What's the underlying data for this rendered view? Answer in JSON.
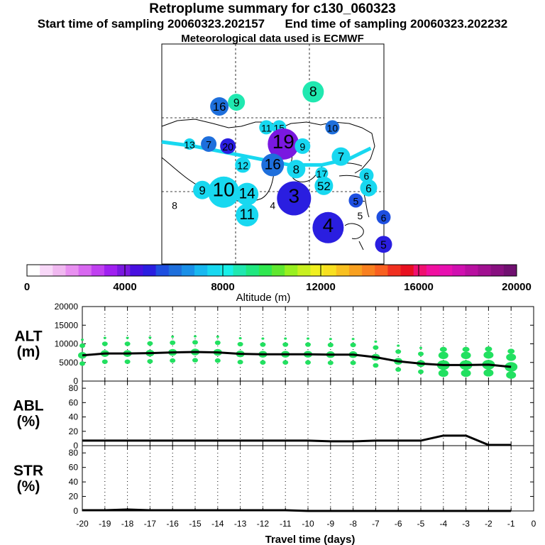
{
  "header": {
    "title": "Retroplume summary for c130_060323",
    "start_label": "Start time of sampling 20060323.202157",
    "end_label": "End time of sampling 20060323.202232",
    "met_label": "Meteorological data used is ECMWF"
  },
  "map": {
    "plume_labels": [
      {
        "t": "16",
        "c": "#1e6fdc",
        "s": 13,
        "lon": 0.27,
        "lat": 0.72
      },
      {
        "t": "9",
        "c": "#20e8b0",
        "s": 12,
        "lon": 0.35,
        "lat": 0.74
      },
      {
        "t": "8",
        "c": "#20e8b0",
        "s": 15,
        "lon": 0.71,
        "lat": 0.79
      },
      {
        "t": "11",
        "c": "#18d8f0",
        "s": 10,
        "lon": 0.49,
        "lat": 0.62
      },
      {
        "t": "15",
        "c": "#18d8f0",
        "s": 10,
        "lon": 0.55,
        "lat": 0.62
      },
      {
        "t": "10",
        "c": "#1e6fdc",
        "s": 10,
        "lon": 0.8,
        "lat": 0.62
      },
      {
        "t": "13",
        "c": "#18d8f0",
        "s": 8,
        "lon": 0.13,
        "lat": 0.54
      },
      {
        "t": "7",
        "c": "#1e6fdc",
        "s": 11,
        "lon": 0.22,
        "lat": 0.54
      },
      {
        "t": "20",
        "c": "#2a1ee0",
        "s": 11,
        "lon": 0.31,
        "lat": 0.53
      },
      {
        "t": "19",
        "c": "#7a18e0",
        "s": 22,
        "lon": 0.57,
        "lat": 0.54
      },
      {
        "t": "9",
        "c": "#18d8f0",
        "s": 11,
        "lon": 0.66,
        "lat": 0.53
      },
      {
        "t": "7",
        "c": "#18d8f0",
        "s": 13,
        "lon": 0.84,
        "lat": 0.48
      },
      {
        "t": "12",
        "c": "#18d8f0",
        "s": 11,
        "lon": 0.38,
        "lat": 0.44
      },
      {
        "t": "16",
        "c": "#1e6fdc",
        "s": 16,
        "lon": 0.52,
        "lat": 0.44
      },
      {
        "t": "17",
        "c": "#18d8f0",
        "s": 9,
        "lon": 0.75,
        "lat": 0.4
      },
      {
        "t": "6",
        "c": "#18d8f0",
        "s": 10,
        "lon": 0.96,
        "lat": 0.39
      },
      {
        "t": "9",
        "c": "#18d8f0",
        "s": 13,
        "lon": 0.19,
        "lat": 0.32
      },
      {
        "t": "10",
        "c": "#18d8f0",
        "s": 22,
        "lon": 0.29,
        "lat": 0.31
      },
      {
        "t": "14",
        "c": "#18d8f0",
        "s": 16,
        "lon": 0.4,
        "lat": 0.3
      },
      {
        "t": "8",
        "c": "#18d8f0",
        "s": 13,
        "lon": 0.63,
        "lat": 0.42
      },
      {
        "t": "52",
        "c": "#18d8f0",
        "s": 13,
        "lon": 0.76,
        "lat": 0.34
      },
      {
        "t": "6",
        "c": "#18d8f0",
        "s": 12,
        "lon": 0.97,
        "lat": 0.33
      },
      {
        "t": "3",
        "c": "#2a1ee0",
        "s": 24,
        "lon": 0.62,
        "lat": 0.28
      },
      {
        "t": "5",
        "c": "#1e4fe0",
        "s": 10,
        "lon": 0.91,
        "lat": 0.27
      },
      {
        "t": "11",
        "c": "#18d8f0",
        "s": 16,
        "lon": 0.4,
        "lat": 0.2
      },
      {
        "t": "4",
        "c": "#2a1ee0",
        "s": 22,
        "lon": 0.78,
        "lat": 0.14
      },
      {
        "t": "6",
        "c": "#1e4fe0",
        "s": 10,
        "lon": 1.04,
        "lat": 0.19
      },
      {
        "t": "5",
        "c": "#2a1ee0",
        "s": 12,
        "lon": 1.04,
        "lat": 0.06
      },
      {
        "t": "8",
        "c": "#18d8f0",
        "s": 0,
        "lon": 0.06,
        "lat": 0.25
      },
      {
        "t": "4",
        "c": "#7a18e0",
        "s": 0,
        "lon": 0.52,
        "lat": 0.25
      },
      {
        "t": "5",
        "c": "#1e4fe0",
        "s": 0,
        "lon": 0.93,
        "lat": 0.2
      }
    ]
  },
  "colorbar": {
    "ticks": [
      "0",
      "4000",
      "8000",
      "12000",
      "16000",
      "20000"
    ],
    "label": "Altitude (m)",
    "colors": [
      "#ffffff",
      "#f8d8f8",
      "#f0b8f0",
      "#e890f0",
      "#d868f0",
      "#c040f0",
      "#a020f0",
      "#7a18e0",
      "#4810e0",
      "#2a1ee0",
      "#1e4fe0",
      "#1e6fdc",
      "#1a90e8",
      "#18b8f0",
      "#18d8f0",
      "#18f0e8",
      "#20e8b0",
      "#20e880",
      "#30e850",
      "#60e830",
      "#98f020",
      "#c8f020",
      "#f0f020",
      "#f8e020",
      "#f8c020",
      "#f8a020",
      "#f88020",
      "#f86020",
      "#f03020",
      "#e81020",
      "#f01070",
      "#f010a0",
      "#e810b0",
      "#d010b0",
      "#b810a0",
      "#a01090",
      "#881080",
      "#701070"
    ]
  },
  "chart_data": [
    {
      "type": "line",
      "name": "ALT",
      "ylabel": "ALT\n(m)",
      "ylim": [
        0,
        20000
      ],
      "yticks": [
        "0",
        "5000",
        "10000",
        "15000",
        "20000"
      ],
      "xlim": [
        -20,
        0
      ],
      "x": [
        -20,
        -19,
        -18,
        -17,
        -16,
        -15,
        -14,
        -13,
        -12,
        -11,
        -10,
        -9,
        -8,
        -7,
        -6,
        -5,
        -4,
        -3,
        -2,
        -1
      ],
      "values": [
        6900,
        7400,
        7400,
        7500,
        7700,
        7800,
        7700,
        7300,
        7200,
        7200,
        7200,
        7100,
        7100,
        6400,
        5300,
        4700,
        4300,
        4300,
        4400,
        3800
      ],
      "marker_color": "#22e060"
    },
    {
      "type": "line",
      "name": "ABL",
      "ylabel": "ABL\n(%)",
      "ylim": [
        0,
        90
      ],
      "yticks": [
        "0",
        "20",
        "40",
        "60",
        "80"
      ],
      "xlim": [
        -20,
        0
      ],
      "x": [
        -20,
        -19,
        -18,
        -17,
        -16,
        -15,
        -14,
        -13,
        -12,
        -11,
        -10,
        -9,
        -8,
        -7,
        -6,
        -5,
        -4,
        -3,
        -2,
        -1
      ],
      "values": [
        7,
        7,
        7,
        7,
        7,
        7,
        7,
        7,
        7,
        7,
        7,
        6,
        6,
        7,
        7,
        7,
        14,
        14,
        1,
        1
      ]
    },
    {
      "type": "line",
      "name": "STR",
      "ylabel": "STR\n(%)",
      "ylim": [
        0,
        90
      ],
      "yticks": [
        "0",
        "20",
        "40",
        "60",
        "80"
      ],
      "xlim": [
        -20,
        0
      ],
      "x": [
        -20,
        -19,
        -18,
        -17,
        -16,
        -15,
        -14,
        -13,
        -12,
        -11,
        -10,
        -9,
        -8,
        -7,
        -6,
        -5,
        -4,
        -3,
        -2,
        -1
      ],
      "values": [
        1,
        1,
        2,
        1,
        1,
        1,
        1,
        1,
        1,
        1,
        0,
        0,
        0,
        0,
        0,
        0,
        0,
        0,
        0,
        0
      ]
    }
  ],
  "xaxis": {
    "ticks": [
      "-20",
      "-19",
      "-18",
      "-17",
      "-16",
      "-15",
      "-14",
      "-13",
      "-12",
      "-11",
      "-10",
      "-9",
      "-8",
      "-7",
      "-6",
      "-5",
      "-4",
      "-3",
      "-2",
      "-1",
      "0"
    ],
    "label": "Travel time (days)"
  }
}
